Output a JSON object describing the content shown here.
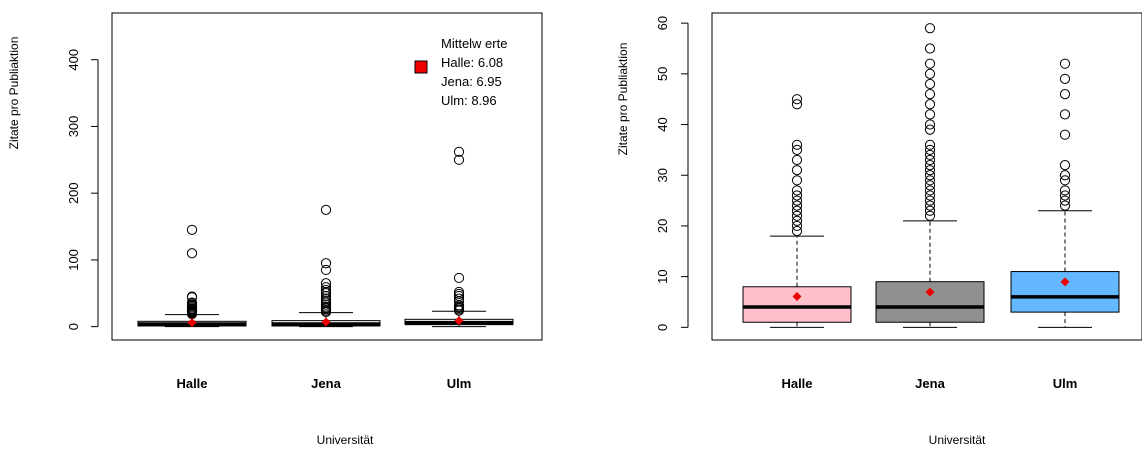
{
  "chart_data": [
    {
      "type": "boxplot",
      "ylabel": "Zitate pro Publiaktion",
      "xlabel": "Universität",
      "ylim": [
        -20,
        470
      ],
      "y_ticks": [
        0,
        100,
        200,
        300,
        400
      ],
      "categories": [
        "Halle",
        "Jena",
        "Ulm"
      ],
      "boxes": [
        {
          "name": "Halle",
          "whisker_low": 0,
          "q1": 1,
          "median": 4,
          "q3": 8,
          "whisker_high": 18,
          "mean": 6.08,
          "color": "#ffffff",
          "outliers": [
            19,
            20,
            21,
            22,
            23,
            24,
            25,
            26,
            27,
            29,
            31,
            33,
            35,
            36,
            44,
            45,
            110,
            145
          ]
        },
        {
          "name": "Jena",
          "whisker_low": 0,
          "q1": 1,
          "median": 4,
          "q3": 9,
          "whisker_high": 21,
          "mean": 6.95,
          "color": "#ffffff",
          "outliers": [
            22,
            24,
            26,
            28,
            30,
            33,
            36,
            39,
            42,
            46,
            50,
            52,
            55,
            59,
            65,
            85,
            95,
            175
          ]
        },
        {
          "name": "Ulm",
          "whisker_low": 0,
          "q1": 3,
          "median": 6,
          "q3": 11,
          "whisker_high": 23,
          "mean": 8.96,
          "color": "#ffffff",
          "outliers": [
            24,
            26,
            28,
            30,
            32,
            38,
            42,
            46,
            49,
            52,
            73,
            250,
            262
          ]
        }
      ],
      "mean_marker_color": "#ee0000",
      "legend": {
        "position": "top-right",
        "title": "Mittelw erte",
        "entries": [
          "Halle: 6.08",
          "Jena: 6.95",
          "Ulm: 8.96"
        ],
        "swatch_color": "#ee0000"
      },
      "grid": false
    },
    {
      "type": "boxplot",
      "ylabel": "Zitate pro Publiaktion",
      "xlabel": "Universität",
      "ylim": [
        -2.5,
        62
      ],
      "y_ticks": [
        0,
        10,
        20,
        30,
        40,
        50,
        60
      ],
      "categories": [
        "Halle",
        "Jena",
        "Ulm"
      ],
      "boxes": [
        {
          "name": "Halle",
          "whisker_low": 0,
          "q1": 1,
          "median": 4,
          "q3": 8,
          "whisker_high": 18,
          "mean": 6.08,
          "color": "#ffc0cb",
          "outliers": [
            19,
            20,
            21,
            22,
            23,
            24,
            25,
            26,
            27,
            29,
            31,
            33,
            35,
            36,
            44,
            45
          ]
        },
        {
          "name": "Jena",
          "whisker_low": 0,
          "q1": 1,
          "median": 4,
          "q3": 9,
          "whisker_high": 21,
          "mean": 6.95,
          "color": "#909090",
          "outliers": [
            22,
            23,
            24,
            25,
            26,
            27,
            28,
            29,
            30,
            31,
            32,
            33,
            34,
            35,
            36,
            39,
            40,
            42,
            44,
            46,
            48,
            50,
            52,
            55,
            59
          ]
        },
        {
          "name": "Ulm",
          "whisker_low": 0,
          "q1": 3,
          "median": 6,
          "q3": 11,
          "whisker_high": 23,
          "mean": 8.96,
          "color": "#63b8ff",
          "outliers": [
            24,
            25,
            26,
            27,
            29,
            30,
            32,
            38,
            42,
            46,
            49,
            52
          ]
        }
      ],
      "mean_marker_color": "#ee0000",
      "grid": false
    }
  ]
}
